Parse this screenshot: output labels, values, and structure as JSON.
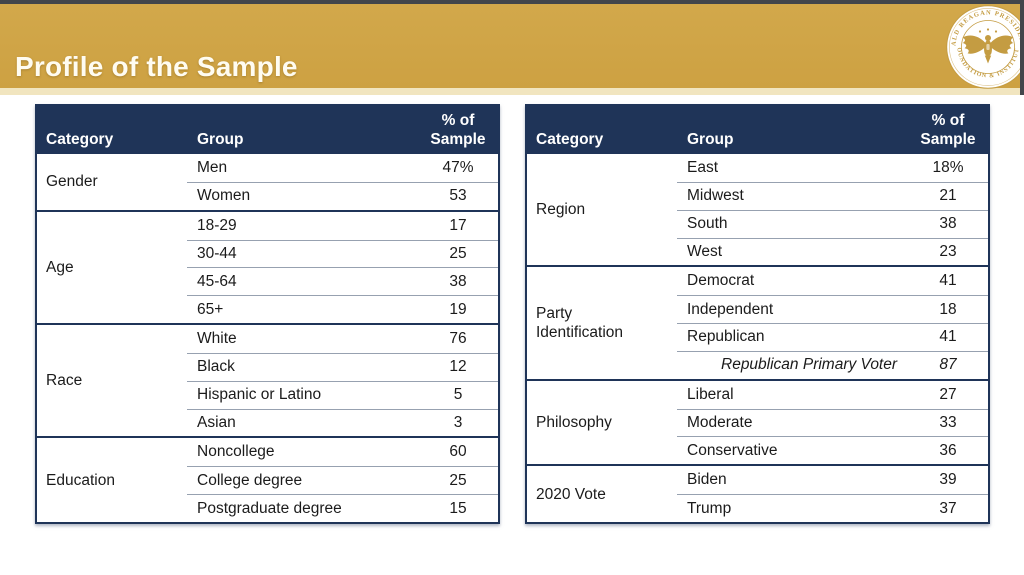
{
  "header": {
    "title": "Profile of the Sample"
  },
  "seal": {
    "text_top": "RONALD REAGAN PRESIDENTIAL",
    "text_bottom": "• FOUNDATION & INSTITUTE •"
  },
  "colors": {
    "gold_band": "#cfa346",
    "cream_strip": "#f1e5bf",
    "navy_header": "#1f3458",
    "row_separator": "#97a1b0",
    "chrome_edge": "#42464b",
    "seal_gold": "#c49c42",
    "body_text": "#1b1b1b"
  },
  "tables": [
    {
      "columns": [
        "Category",
        "Group",
        "% of Sample"
      ],
      "sections": [
        {
          "category": "Gender",
          "rows": [
            {
              "group": "Men",
              "value": "47%"
            },
            {
              "group": "Women",
              "value": "53"
            }
          ]
        },
        {
          "category": "Age",
          "rows": [
            {
              "group": "18-29",
              "value": "17"
            },
            {
              "group": "30-44",
              "value": "25"
            },
            {
              "group": "45-64",
              "value": "38"
            },
            {
              "group": "65+",
              "value": "19"
            }
          ]
        },
        {
          "category": "Race",
          "rows": [
            {
              "group": "White",
              "value": "76"
            },
            {
              "group": "Black",
              "value": "12"
            },
            {
              "group": "Hispanic or Latino",
              "value": "5"
            },
            {
              "group": "Asian",
              "value": "3"
            }
          ]
        },
        {
          "category": "Education",
          "rows": [
            {
              "group": "Noncollege",
              "value": "60"
            },
            {
              "group": "College degree",
              "value": "25"
            },
            {
              "group": "Postgraduate degree",
              "value": "15"
            }
          ]
        }
      ]
    },
    {
      "columns": [
        "Category",
        "Group",
        "% of Sample"
      ],
      "sections": [
        {
          "category": "Region",
          "rows": [
            {
              "group": "East",
              "value": "18%"
            },
            {
              "group": "Midwest",
              "value": "21"
            },
            {
              "group": "South",
              "value": "38"
            },
            {
              "group": "West",
              "value": "23"
            }
          ]
        },
        {
          "category": "Party Identification",
          "rows": [
            {
              "group": "Democrat",
              "value": "41"
            },
            {
              "group": "Independent",
              "value": "18"
            },
            {
              "group": "Republican",
              "value": "41"
            },
            {
              "group": "Republican Primary Voter",
              "value": "87",
              "italic": true
            }
          ]
        },
        {
          "category": "Philosophy",
          "rows": [
            {
              "group": "Liberal",
              "value": "27"
            },
            {
              "group": "Moderate",
              "value": "33"
            },
            {
              "group": "Conservative",
              "value": "36"
            }
          ]
        },
        {
          "category": "2020 Vote",
          "rows": [
            {
              "group": "Biden",
              "value": "39"
            },
            {
              "group": "Trump",
              "value": "37"
            }
          ]
        }
      ]
    }
  ]
}
